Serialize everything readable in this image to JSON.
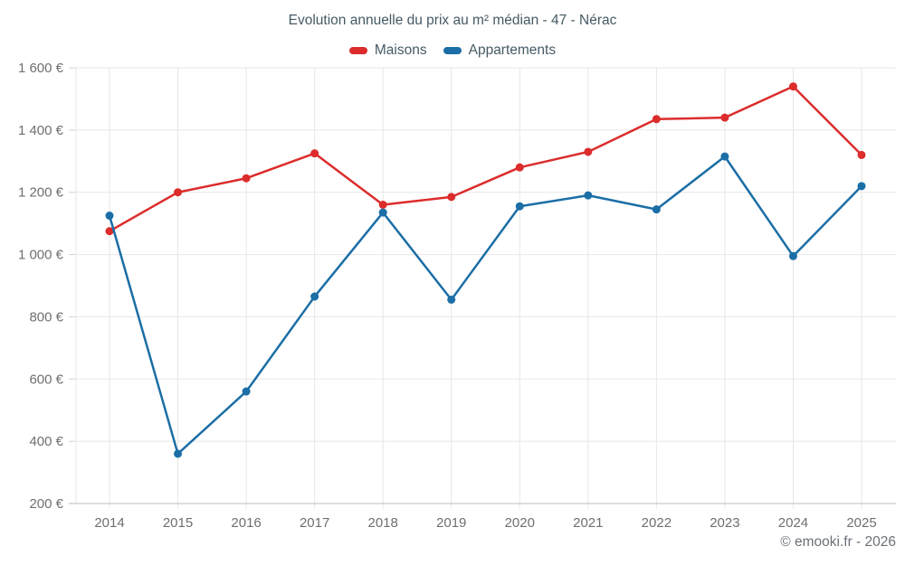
{
  "chart_data": {
    "type": "line",
    "title": "Evolution annuelle du prix au m² médian - 47 - Nérac",
    "categories": [
      "2014",
      "2015",
      "2016",
      "2017",
      "2018",
      "2019",
      "2020",
      "2021",
      "2022",
      "2023",
      "2024",
      "2025"
    ],
    "series": [
      {
        "name": "Maisons",
        "color": "#dc2c2c",
        "values": [
          1075,
          1200,
          1245,
          1325,
          1160,
          1185,
          1280,
          1330,
          1435,
          1440,
          1540,
          1320
        ]
      },
      {
        "name": "Appartements",
        "color": "#1b6ea6",
        "values": [
          1125,
          360,
          560,
          865,
          1135,
          855,
          1155,
          1190,
          1145,
          1315,
          995,
          1220
        ]
      }
    ],
    "xlabel": "",
    "ylabel": "",
    "ylim": [
      200,
      1600
    ],
    "y_tick_step": 200,
    "y_tick_suffix": " €",
    "grid": true,
    "legend_position": "top",
    "attribution": "© emooki.fr - 2026"
  },
  "colors": {
    "grid_line": "#e7e7e7",
    "axis_line": "#b8bcc0",
    "tick_line": "#cfd2d6",
    "axis_label": "#6f6f6f",
    "title_text": "#455a64"
  }
}
